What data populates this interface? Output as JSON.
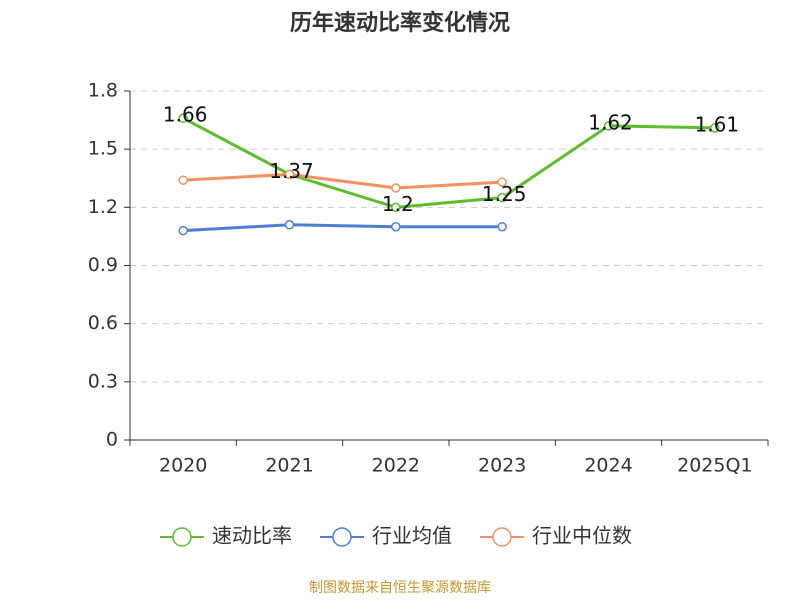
{
  "chart_data": {
    "type": "line",
    "title": "历年速动比率变化情况",
    "categories": [
      "2020",
      "2021",
      "2022",
      "2023",
      "2024",
      "2025Q1"
    ],
    "series": [
      {
        "name": "速动比率",
        "color": "#5cbf2a",
        "values": [
          1.66,
          1.37,
          1.2,
          1.25,
          1.62,
          1.61
        ],
        "show_labels": true
      },
      {
        "name": "行业均值",
        "color": "#4e7fd5",
        "values": [
          1.08,
          1.11,
          1.1,
          1.1,
          null,
          null
        ]
      },
      {
        "name": "行业中位数",
        "color": "#f4915e",
        "values": [
          1.34,
          1.37,
          1.3,
          1.33,
          null,
          null
        ]
      }
    ],
    "ylim": [
      0,
      1.8
    ],
    "yticks": [
      0,
      0.3,
      0.6,
      0.9,
      1.2,
      1.5,
      1.8
    ],
    "grid": true,
    "legend": "bottom",
    "source": "制图数据来自恒生聚源数据库"
  }
}
